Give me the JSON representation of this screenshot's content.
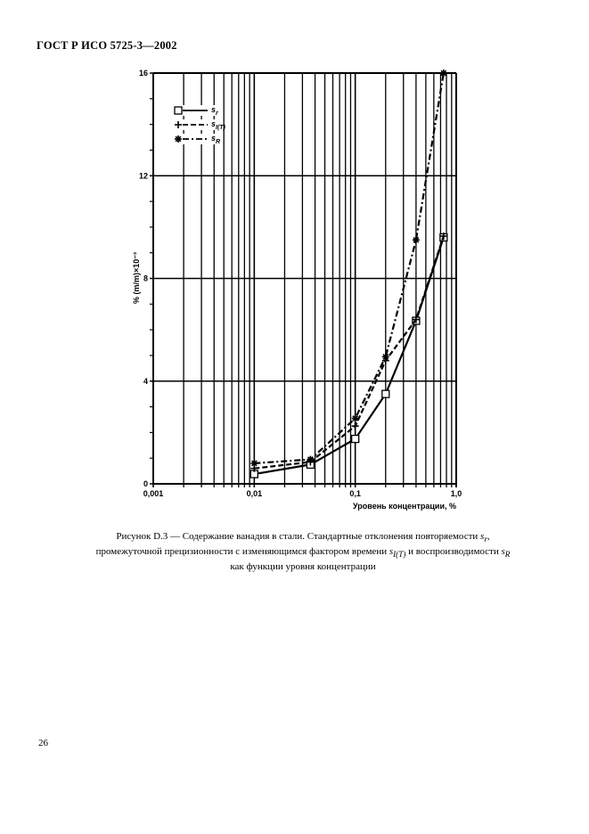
{
  "document": {
    "header": "ГОСТ Р ИСО 5725-3—2002",
    "page_number": "26"
  },
  "figure": {
    "caption_line1_prefix": "Рисунок D.3 — Содержание ванадия в стали. Стандартные отклонения повторяемости ",
    "caption_line1_sym": "s",
    "caption_line1_sub": "r",
    "caption_line1_suffix": ",",
    "caption_line2_prefix": "промежуточной прецизионности с изменяющимся фактором времени ",
    "caption_line2_sym": "s",
    "caption_line2_sub": "I(T)",
    "caption_line2_mid": " и воспроизводимости ",
    "caption_line2_sym2": "s",
    "caption_line2_sub2": "R",
    "caption_line3": "как функции уровня концентрации"
  },
  "chart_data": {
    "type": "line",
    "title": "",
    "xlabel": "Уровень концентрации, %",
    "ylabel": "% (m/m)×10⁻³",
    "xscale": "log",
    "xlim": [
      0.001,
      1.0
    ],
    "ylim": [
      0,
      16
    ],
    "x_tick_labels": [
      "0,001",
      "0,01",
      "0,1",
      "1,0"
    ],
    "y_tick_labels": [
      "0",
      "4",
      "8",
      "12",
      "16"
    ],
    "y_major_ticks": [
      0,
      4,
      8,
      12,
      16
    ],
    "grid": true,
    "legend_position": "upper-left",
    "x": [
      0.01,
      0.036,
      0.1,
      0.2,
      0.4,
      0.75
    ],
    "series": [
      {
        "name": "s_r",
        "label_main": "s",
        "label_sub": "r",
        "marker": "square",
        "linestyle": "solid",
        "values": [
          0.38,
          0.75,
          1.75,
          3.5,
          6.35,
          9.6
        ]
      },
      {
        "name": "s_I(T)",
        "label_main": "s",
        "label_sub": "I(T)",
        "marker": "plus",
        "linestyle": "dashed",
        "values": [
          0.6,
          0.85,
          2.25,
          4.8,
          6.4,
          9.65
        ]
      },
      {
        "name": "s_R",
        "label_main": "s",
        "label_sub": "R",
        "marker": "asterisk",
        "linestyle": "dashdot",
        "values": [
          0.8,
          0.95,
          2.55,
          4.95,
          9.5,
          16.0
        ]
      }
    ]
  }
}
